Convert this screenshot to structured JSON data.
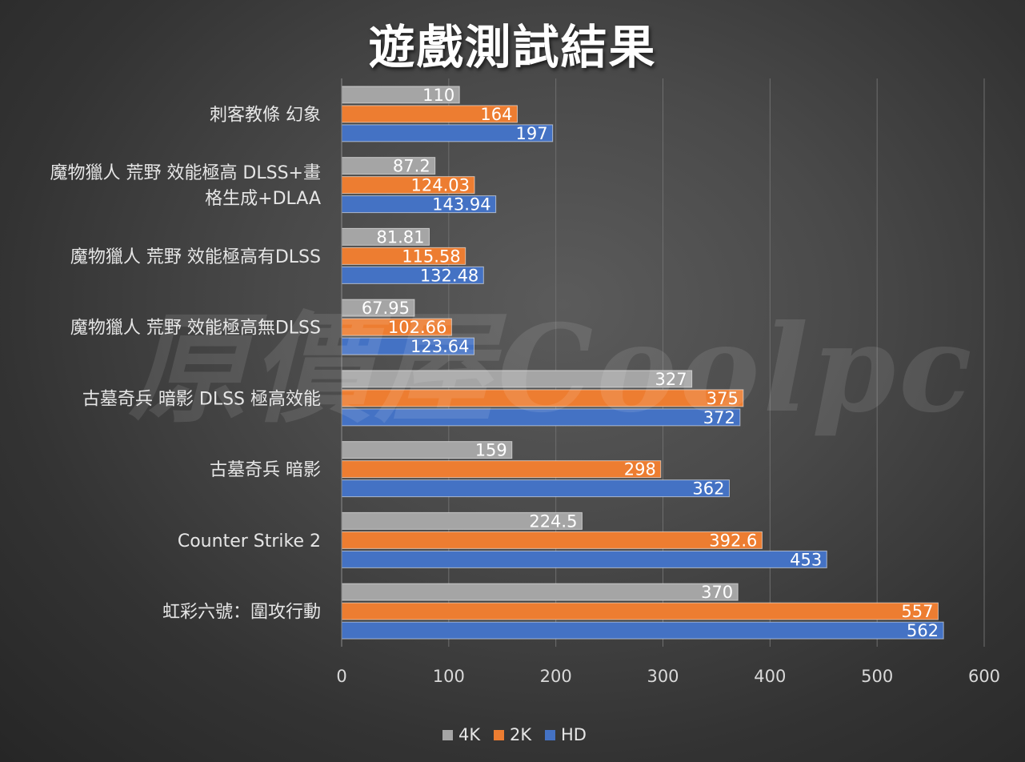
{
  "chart_data": {
    "type": "bar",
    "orientation": "horizontal",
    "title": "遊戲測試結果",
    "watermark": "原價屋Coolpc",
    "categories": [
      "虹彩六號：圍攻行動",
      "Counter Strike 2",
      "古墓奇兵 暗影",
      "古墓奇兵 暗影 DLSS 極高效能",
      "魔物獵人 荒野 效能極高無DLSS",
      "魔物獵人 荒野 效能極高有DLSS",
      "魔物獵人 荒野 效能極高 DLSS+畫格生成+DLAA",
      "刺客教條 幻象"
    ],
    "series": [
      {
        "name": "4K",
        "color": "#a5a5a5",
        "label_color": "#ffffff",
        "values": [
          "370",
          "224.5",
          "159",
          "327",
          "67.95",
          "81.81",
          "87.2",
          "110"
        ]
      },
      {
        "name": "2K",
        "color": "#ed7d31",
        "label_color": "#ffffff",
        "values": [
          "557",
          "392.6",
          "298",
          "375",
          "102.66",
          "115.58",
          "124.03",
          "164"
        ]
      },
      {
        "name": "HD",
        "color": "#4472c4",
        "label_color": "#ffffff",
        "values": [
          "562",
          "453",
          "362",
          "372",
          "123.64",
          "132.48",
          "143.94",
          "197"
        ]
      }
    ],
    "x_ticks": [
      0,
      100,
      200,
      300,
      400,
      500,
      600
    ],
    "xlim": [
      0,
      600
    ],
    "xlabel": "",
    "ylabel": "",
    "grid": true,
    "legend_position": "bottom"
  }
}
